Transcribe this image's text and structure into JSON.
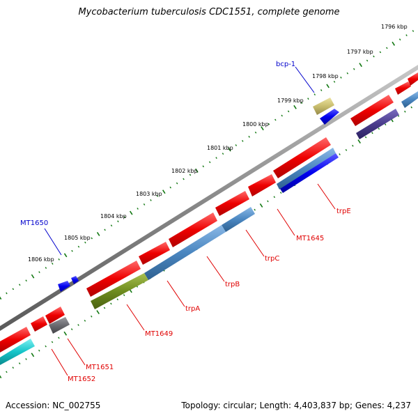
{
  "title": "Mycobacterium tuberculosis CDC1551, complete genome",
  "accession": "Accession: NC_002755",
  "topology": "Topology: circular; Length: 4,403,837 bp; Genes: 4,237",
  "ticks": [
    "1796 kbp",
    "1797 kbp",
    "1798 kbp",
    "1799 kbp",
    "1800 kbp",
    "1801 kbp",
    "1802 kbp",
    "1803 kbp",
    "1804 kbp",
    "1805 kbp",
    "1806 kbp"
  ],
  "labels": {
    "bcp1": "bcp-1",
    "mt1650": "MT1650",
    "trpE": "trpE",
    "mt1645": "MT1645",
    "trpC": "trpC",
    "trpB": "trpB",
    "trpA": "trpA",
    "mt1649": "MT1649",
    "mt1651": "MT1651",
    "mt1652": "MT1652"
  },
  "colors": {
    "red_gene": "#ee0000",
    "steel_gene": "#4a86c0",
    "blue_gene": "#0000ee",
    "olive_gene": "#6e8c1e",
    "khaki_gene": "#c8bd6e",
    "navy_gene": "#4a3c8c",
    "gray_gene": "#6a6a70",
    "cyan_gene": "#14c4c8",
    "backbone": "#8a8a8a",
    "tick": "#117711"
  }
}
